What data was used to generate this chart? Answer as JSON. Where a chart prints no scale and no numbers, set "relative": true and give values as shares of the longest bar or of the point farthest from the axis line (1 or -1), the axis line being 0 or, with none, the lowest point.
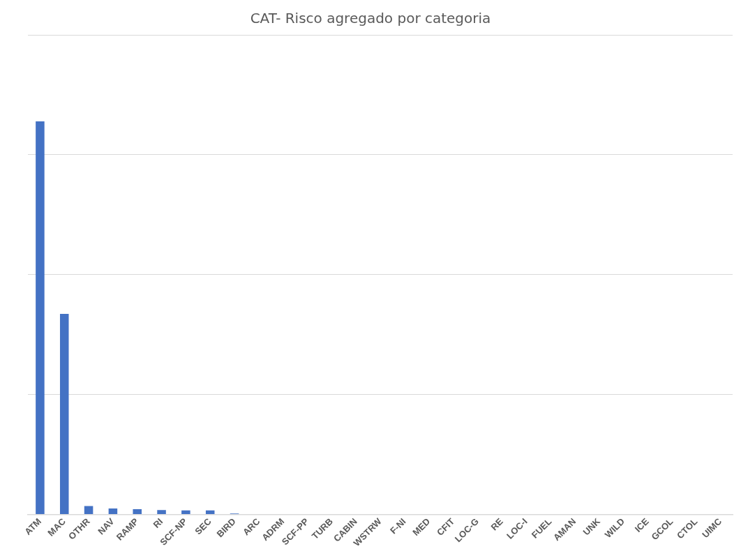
{
  "chart_data": {
    "type": "bar",
    "title": "CAT- Risco agregado por categoria",
    "relative": true,
    "grid": "y",
    "color": "#4472c4",
    "categories": [
      "ATM",
      "MAC",
      "OTHR",
      "NAV",
      "RAMP",
      "RI",
      "SCF-NP",
      "SEC",
      "BIRD",
      "ARC",
      "ADRM",
      "SCF-PP",
      "TURB",
      "CABIN",
      "WSTRW",
      "F-NI",
      "MED",
      "CFIT",
      "LOC-G",
      "RE",
      "LOC-I",
      "FUEL",
      "AMAN",
      "UNK",
      "WILD",
      "ICE",
      "GCOL",
      "CTOL",
      "UIMC"
    ],
    "values": [
      1,
      0.51,
      0.021,
      0.015,
      0.013,
      0.011,
      0.01,
      0.01,
      0.002,
      0,
      0,
      0,
      0,
      0,
      0,
      0,
      0,
      0,
      0,
      0,
      0,
      0,
      0,
      0,
      0,
      0,
      0,
      0,
      0
    ]
  }
}
